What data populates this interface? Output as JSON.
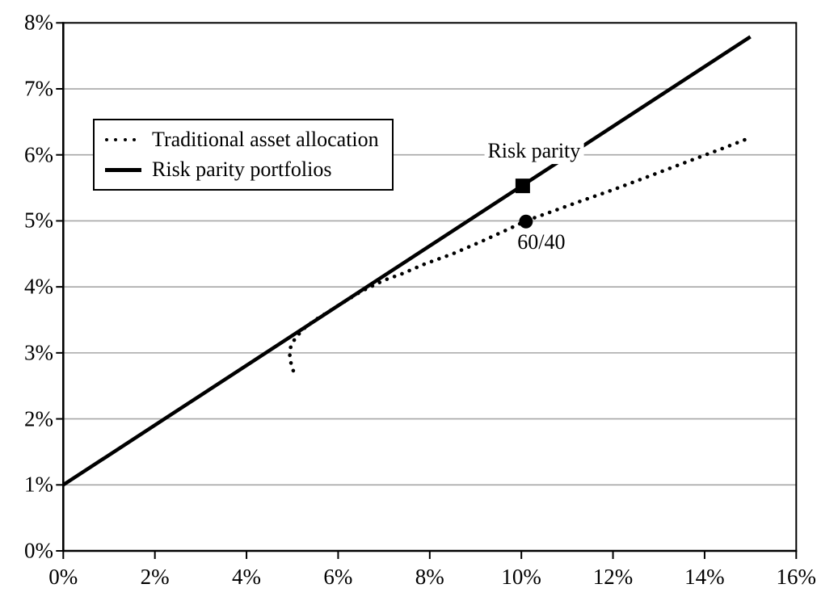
{
  "chart_data": {
    "type": "line",
    "title": "",
    "xlabel": "",
    "ylabel": "",
    "x_axis": {
      "min": 0,
      "max": 16,
      "tick_step": 2,
      "tick_labels": [
        "0%",
        "2%",
        "4%",
        "6%",
        "8%",
        "10%",
        "12%",
        "14%",
        "16%"
      ]
    },
    "y_axis": {
      "min": 0,
      "max": 8,
      "tick_step": 1,
      "tick_labels": [
        "0%",
        "1%",
        "2%",
        "3%",
        "4%",
        "5%",
        "6%",
        "7%",
        "8%"
      ]
    },
    "grid": "horizontal-only",
    "legend_position": "upper-left-inside",
    "series": [
      {
        "name": "Traditional asset allocation",
        "style": "dotted",
        "color": "#000000",
        "points": [
          [
            5.02,
            2.73
          ],
          [
            4.94,
            2.92
          ],
          [
            4.96,
            3.08
          ],
          [
            5.06,
            3.22
          ],
          [
            5.24,
            3.36
          ],
          [
            5.48,
            3.49
          ],
          [
            5.78,
            3.62
          ],
          [
            6.1,
            3.76
          ],
          [
            6.5,
            3.93
          ],
          [
            7.0,
            4.1
          ],
          [
            7.4,
            4.2
          ],
          [
            7.9,
            4.35
          ],
          [
            8.5,
            4.5
          ],
          [
            9.1,
            4.68
          ],
          [
            9.7,
            4.87
          ],
          [
            10.1,
            5.0
          ],
          [
            10.7,
            5.15
          ],
          [
            11.3,
            5.3
          ],
          [
            12.0,
            5.47
          ],
          [
            12.8,
            5.68
          ],
          [
            13.6,
            5.89
          ],
          [
            14.4,
            6.1
          ],
          [
            14.92,
            6.24
          ]
        ]
      },
      {
        "name": "Risk parity portfolios",
        "style": "solid",
        "color": "#000000",
        "points": [
          [
            0,
            1.0
          ],
          [
            15.0,
            7.79
          ]
        ]
      }
    ],
    "annotations": [
      {
        "text": "Risk parity",
        "marker": "square",
        "x": 10.03,
        "y": 5.53
      },
      {
        "text": "60/40",
        "marker": "circle",
        "x": 10.1,
        "y": 4.99
      }
    ],
    "colors": {
      "axis": "#000000",
      "gridline": "#a6a6a6",
      "text": "#000000",
      "background": "#ffffff"
    }
  }
}
